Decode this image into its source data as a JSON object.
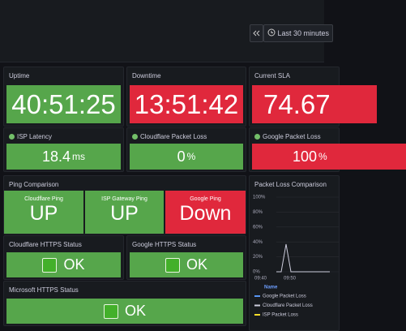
{
  "time_range": "Last 30 minutes",
  "stats": [
    {
      "title": "Uptime",
      "value": "40:51:25"
    },
    {
      "title": "Downtime",
      "value": "13:51:42"
    },
    {
      "title": "Current SLA",
      "value": "74.67"
    }
  ],
  "gauges": [
    {
      "title": "ISP Latency",
      "value": "18.4",
      "unit": "ms"
    },
    {
      "title": "Cloudflare Packet Loss",
      "value": "0",
      "unit": "%"
    },
    {
      "title": "Google Packet Loss",
      "value": "100",
      "unit": "%"
    }
  ],
  "ping": {
    "title": "Ping Comparison",
    "items": [
      {
        "label": "Cloudflare Ping",
        "status": "UP"
      },
      {
        "label": "ISP Gateway Ping",
        "status": "UP"
      },
      {
        "label": "Google Ping",
        "status": "Down"
      }
    ]
  },
  "https": [
    {
      "title": "Cloudflare HTTPS Status",
      "status": "OK"
    },
    {
      "title": "Google HTTPS Status",
      "status": "OK"
    },
    {
      "title": "Microsoft HTTPS Status",
      "status": "OK"
    }
  ],
  "packet_loss": {
    "title": "Packet Loss Comparison",
    "ylim": [
      0,
      100
    ],
    "yticks": [
      {
        "value": 100,
        "label": "100%"
      },
      {
        "value": 80,
        "label": "80%"
      },
      {
        "value": 60,
        "label": "60%"
      },
      {
        "value": 40,
        "label": "40%"
      },
      {
        "value": 20,
        "label": "20%"
      },
      {
        "value": 0,
        "label": "0%"
      }
    ],
    "xticks": [
      "09:40",
      "09:50"
    ],
    "legend_title": "Name",
    "series": [
      {
        "name": "Google Packet Loss",
        "color": "#5794f2"
      },
      {
        "name": "Cloudflare Packet Loss",
        "color": "#ccccdc",
        "values": [
          0,
          0,
          37,
          0,
          0,
          0,
          0,
          0,
          0,
          0,
          0,
          0
        ]
      },
      {
        "name": "ISP Packet Loss",
        "color": "#fade2a"
      }
    ]
  }
}
